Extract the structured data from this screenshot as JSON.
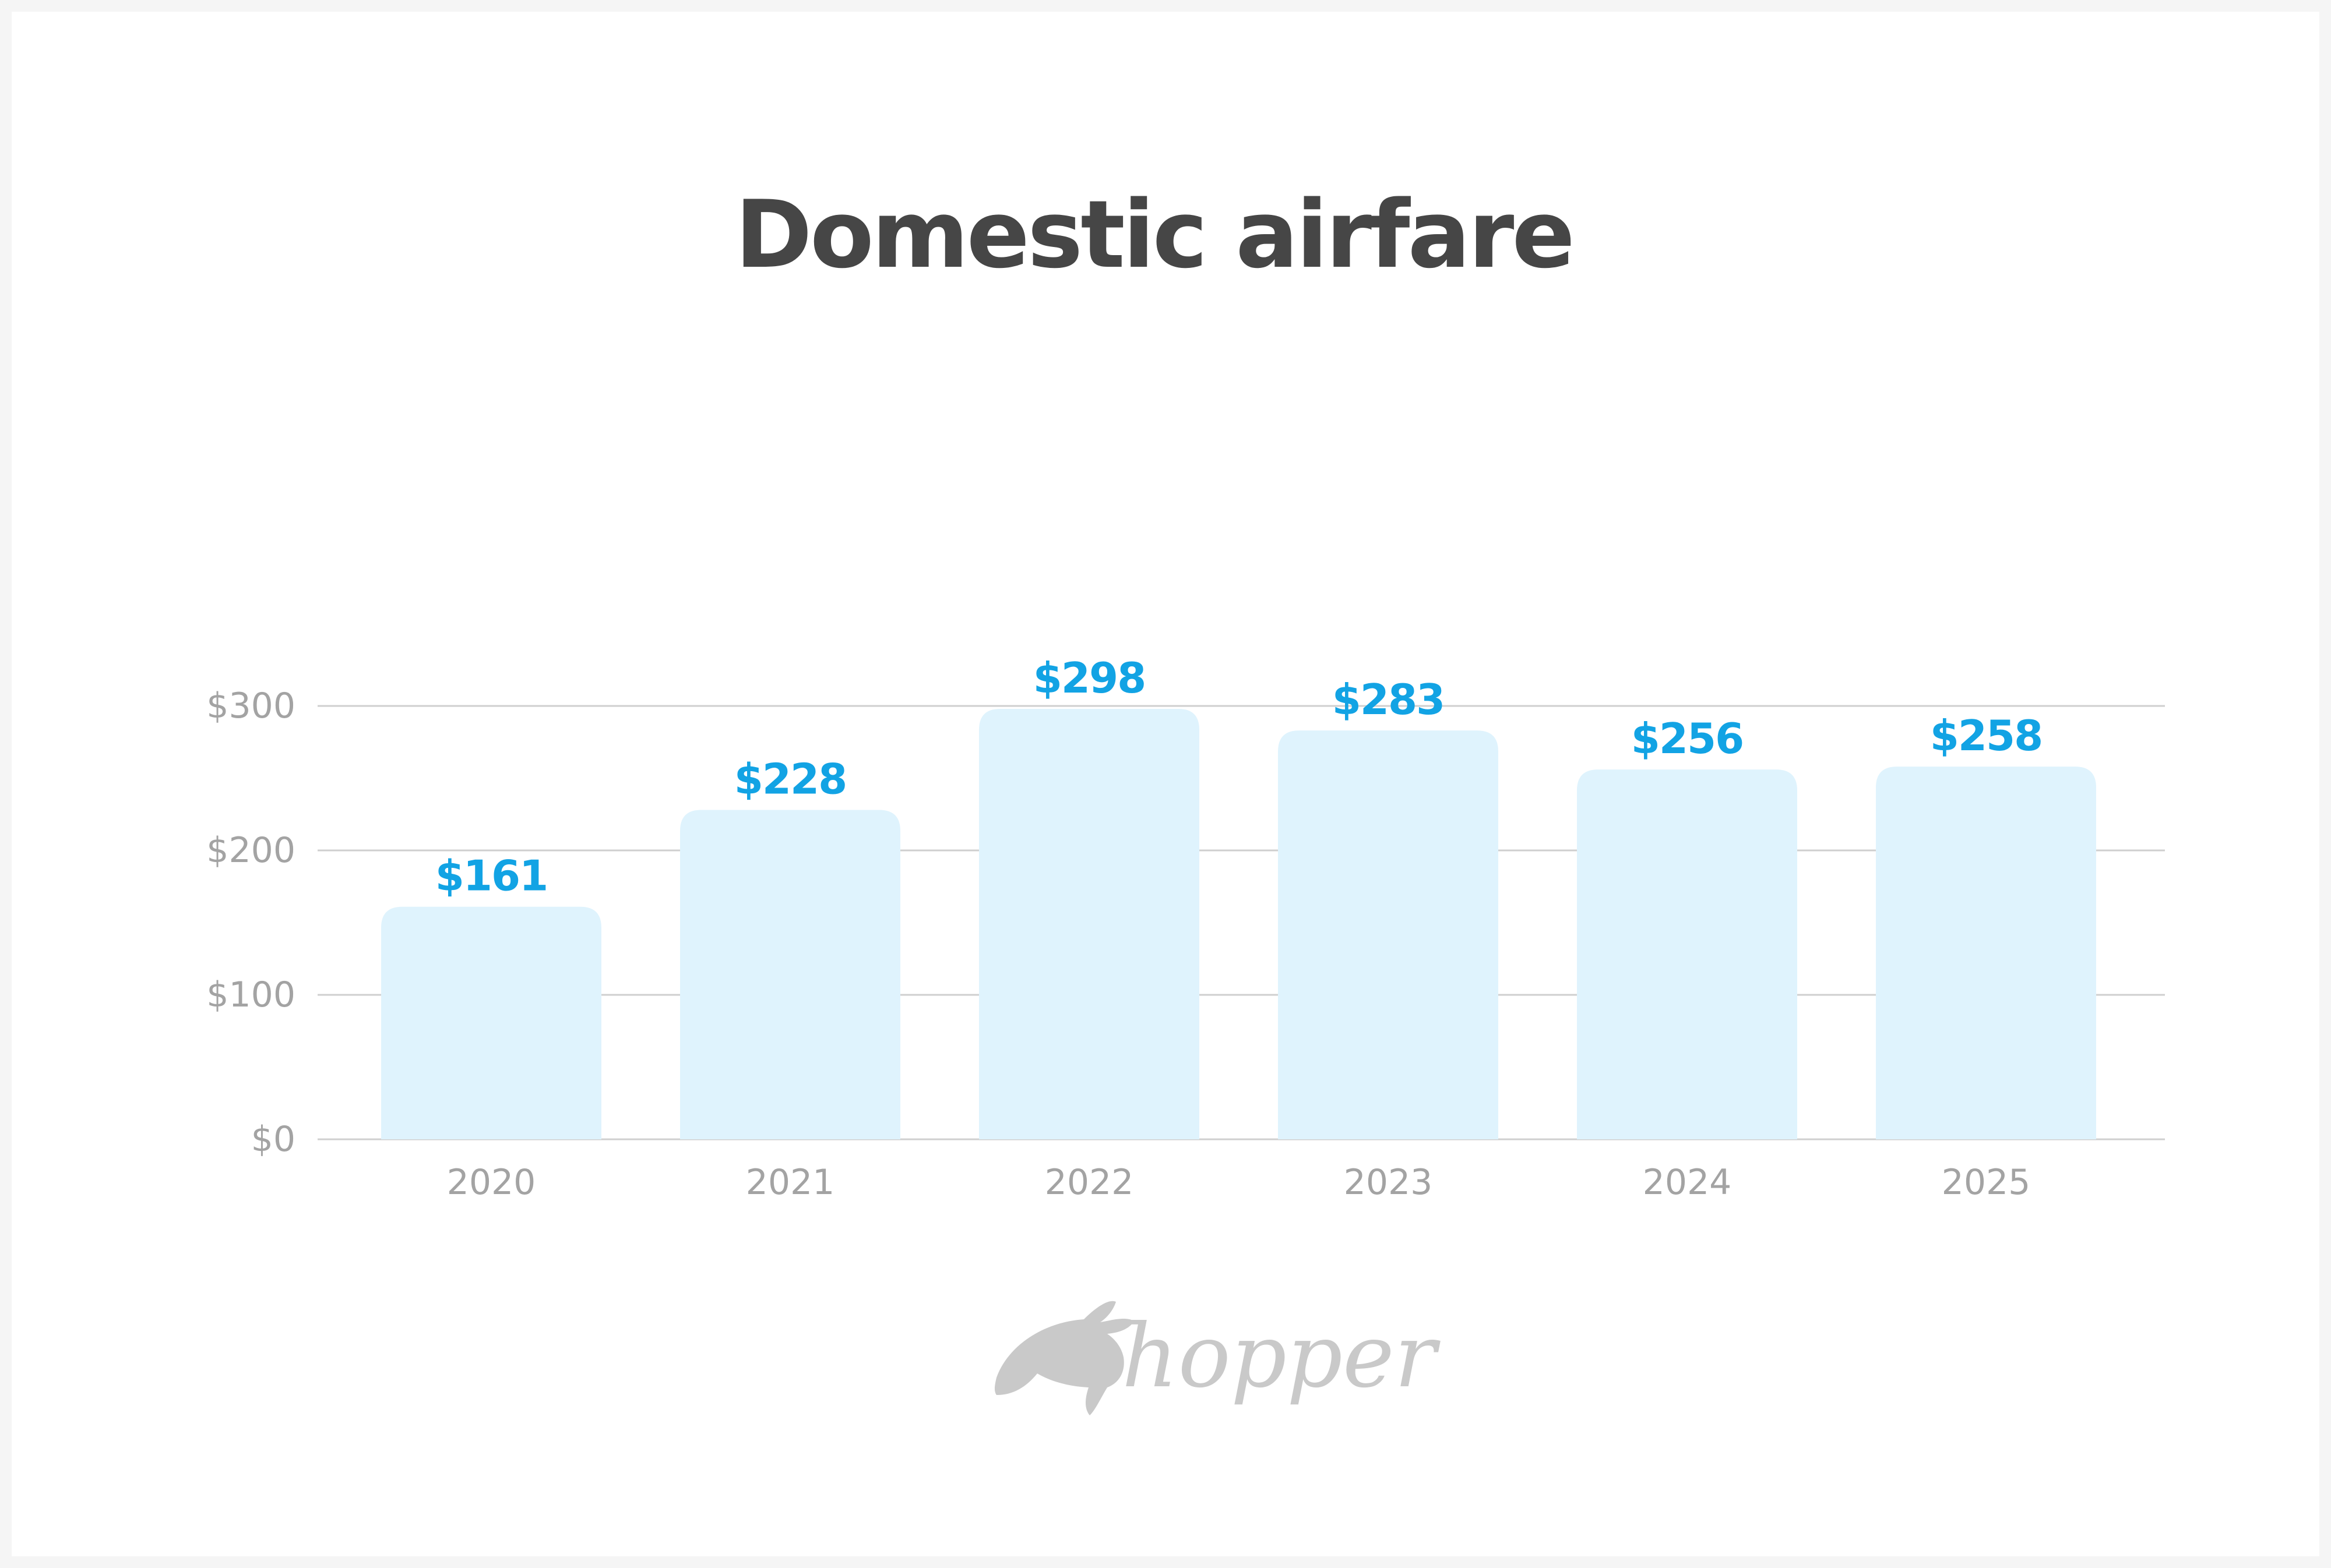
{
  "colors": {
    "bar_fill": "#dff3fd",
    "data_label": "#12a3e4",
    "title": "#464646",
    "axis_text": "#a3a3a3",
    "grid": "#cfcfcf",
    "logo": "#c9c9c9"
  },
  "chart_data": {
    "type": "bar",
    "title": "Domestic airfare",
    "xlabel": "",
    "ylabel": "",
    "categories": [
      "2020",
      "2021",
      "2022",
      "2023",
      "2024",
      "2025"
    ],
    "values": [
      161,
      228,
      298,
      283,
      256,
      258
    ],
    "data_labels": [
      "$161",
      "$228",
      "$298",
      "$283",
      "$256",
      "$258"
    ],
    "ylim": [
      0,
      300
    ],
    "yticks": [
      0,
      100,
      200,
      300
    ],
    "ytick_labels": [
      "$0",
      "$100",
      "$200",
      "$300"
    ],
    "grid": true,
    "legend": "none"
  },
  "branding": {
    "logo_text": "hopper",
    "logo_icon": "rabbit-icon"
  }
}
